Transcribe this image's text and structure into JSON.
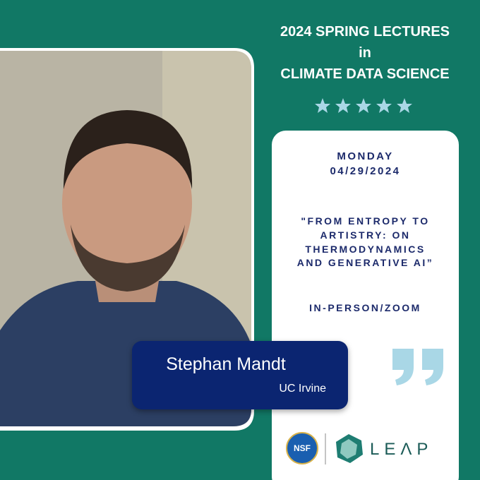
{
  "header": {
    "lines": [
      "2024 SPRING LECTURES",
      "in",
      "CLIMATE DATA SCIENCE"
    ]
  },
  "event": {
    "day": "MONDAY",
    "date": "04/29/2024",
    "title_lines": [
      "\"FROM ENTROPY TO",
      "ARTISTRY: ON",
      "THERMODYNAMICS",
      "AND GENERATIVE AI”"
    ],
    "format": "IN-PERSON/ZOOM"
  },
  "speaker": {
    "name": "Stephan Mandt",
    "affiliation": "UC Irvine"
  },
  "logos": {
    "nsf": "NSF",
    "leap": "LEΛP"
  }
}
